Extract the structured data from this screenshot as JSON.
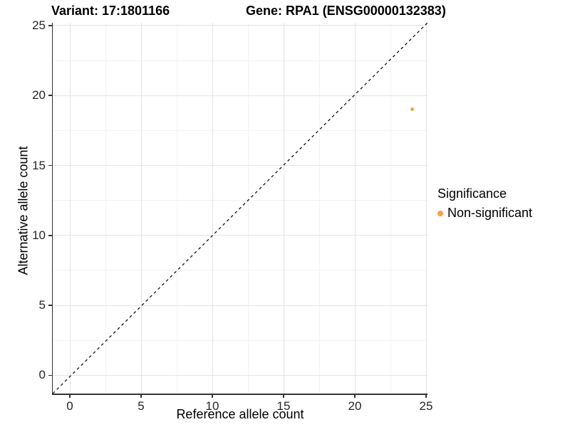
{
  "figure": {
    "title_variant": "Variant: 17:1801166",
    "title_gene": "Gene: RPA1 (ENSG00000132383)"
  },
  "legend": {
    "title": "Significance",
    "items": [
      {
        "label": "Non-significant",
        "color": "#F9A243"
      }
    ]
  },
  "chart_data": {
    "type": "scatter",
    "title_left": "Variant: 17:1801166",
    "title_right": "Gene: RPA1 (ENSG00000132383)",
    "xlabel": "Reference allele count",
    "ylabel": "Alternative allele count",
    "xlim": [
      -1.2,
      25.1
    ],
    "ylim": [
      -1.3,
      25.2
    ],
    "x_major_ticks": [
      0,
      5,
      10,
      15,
      20,
      25
    ],
    "y_major_ticks": [
      0,
      5,
      10,
      15,
      20,
      25
    ],
    "x_minor_ticks": [
      2.5,
      7.5,
      12.5,
      17.5,
      22.5
    ],
    "y_minor_ticks": [
      2.5,
      7.5,
      12.5,
      17.5,
      22.5
    ],
    "grid": "major+minor",
    "legend_position": "right",
    "reference_line": {
      "kind": "identity y=x",
      "style": "dashed",
      "color": "#000000"
    },
    "series": [
      {
        "name": "Non-significant",
        "color": "#F9A243",
        "marker_size_px": 5,
        "points": [
          {
            "x": 24,
            "y": 19
          }
        ]
      }
    ]
  },
  "style": {
    "grid_major_color": "#e4e4e4",
    "grid_minor_color": "#f2f2f2",
    "axis_line_color": "#333333",
    "tick_label_color": "#262626",
    "accent_orange": "#F9A243"
  }
}
